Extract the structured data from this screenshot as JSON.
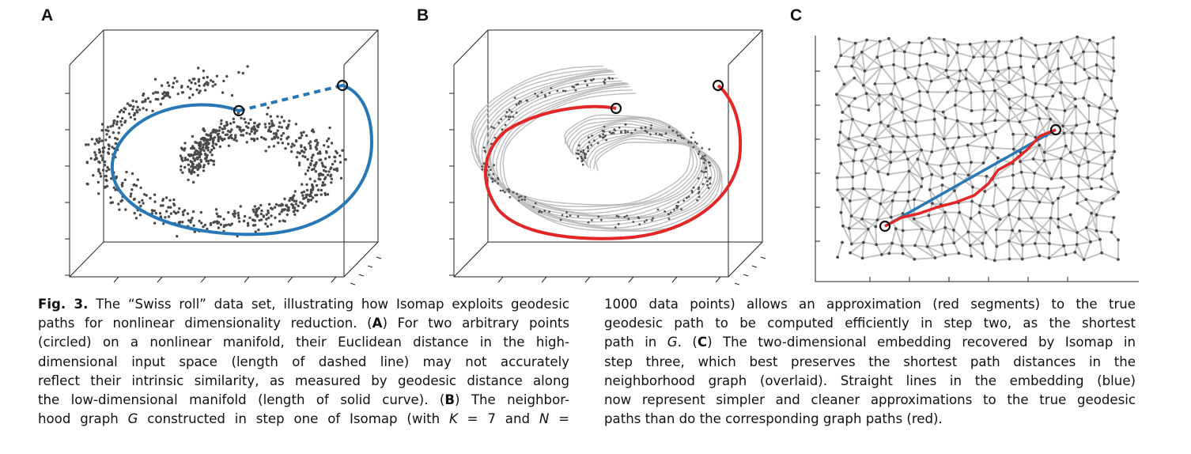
{
  "figure": {
    "panel_labels": [
      "A",
      "B",
      "C"
    ],
    "colors": {
      "points": "#4a4a4a",
      "edges": "#bdbdbd",
      "geodesic_blue": "#2878b5",
      "graph_path_red": "#e32626",
      "axes": "#222222"
    },
    "panel_a": {
      "description_icons": [
        "circle-marker",
        "circle-marker"
      ]
    },
    "panel_b": {
      "description_icons": [
        "circle-marker",
        "circle-marker"
      ]
    },
    "panel_c": {
      "description_icons": [
        "circle-marker",
        "circle-marker"
      ]
    }
  },
  "caption": {
    "left": {
      "l1": {
        "label": "Fig. 3.",
        "t": " The “Swiss roll” data set, illustrating how Isomap exploits geodesic"
      },
      "l2": {
        "t": "paths for nonlinear dimensionality reduction. (",
        "A": "A",
        "t2": ") For two arbitrary points"
      },
      "l3": {
        "t": "(circled) on a nonlinear manifold, their Euclidean distance in the high-"
      },
      "l4": {
        "t": "dimensional input space (length of dashed line) may not accurately"
      },
      "l5": {
        "t": "reflect their intrinsic similarity, as measured by geodesic distance along"
      },
      "l6": {
        "t": "the low-dimensional manifold (length of solid curve). (",
        "B": "B",
        "t2": ") The neighbor-"
      },
      "l7": {
        "t": "hood graph ",
        "G": "G",
        "t2": " constructed in step one of Isomap (with ",
        "K": "K",
        "t3": " = 7 and ",
        "N": "N",
        "t4": " ="
      }
    },
    "right": {
      "l1": {
        "t": "1000 data points) allows an approximation (red segments) to the true"
      },
      "l2": {
        "t": "geodesic path to be computed efficiently in step two, as the shortest"
      },
      "l3": {
        "t": "path in ",
        "G": "G",
        "t2": ". (",
        "C": "C",
        "t3": ") The two-dimensional embedding recovered by Isomap in"
      },
      "l4": {
        "t": "step three, which best preserves the shortest path distances in the"
      },
      "l5": {
        "t": "neighborhood graph (overlaid). Straight lines in the embedding (blue)"
      },
      "l6": {
        "t": "now represent simpler and cleaner approximations to the true geodesic"
      },
      "l7": {
        "t": "paths than do the corresponding graph paths (red)."
      }
    }
  }
}
